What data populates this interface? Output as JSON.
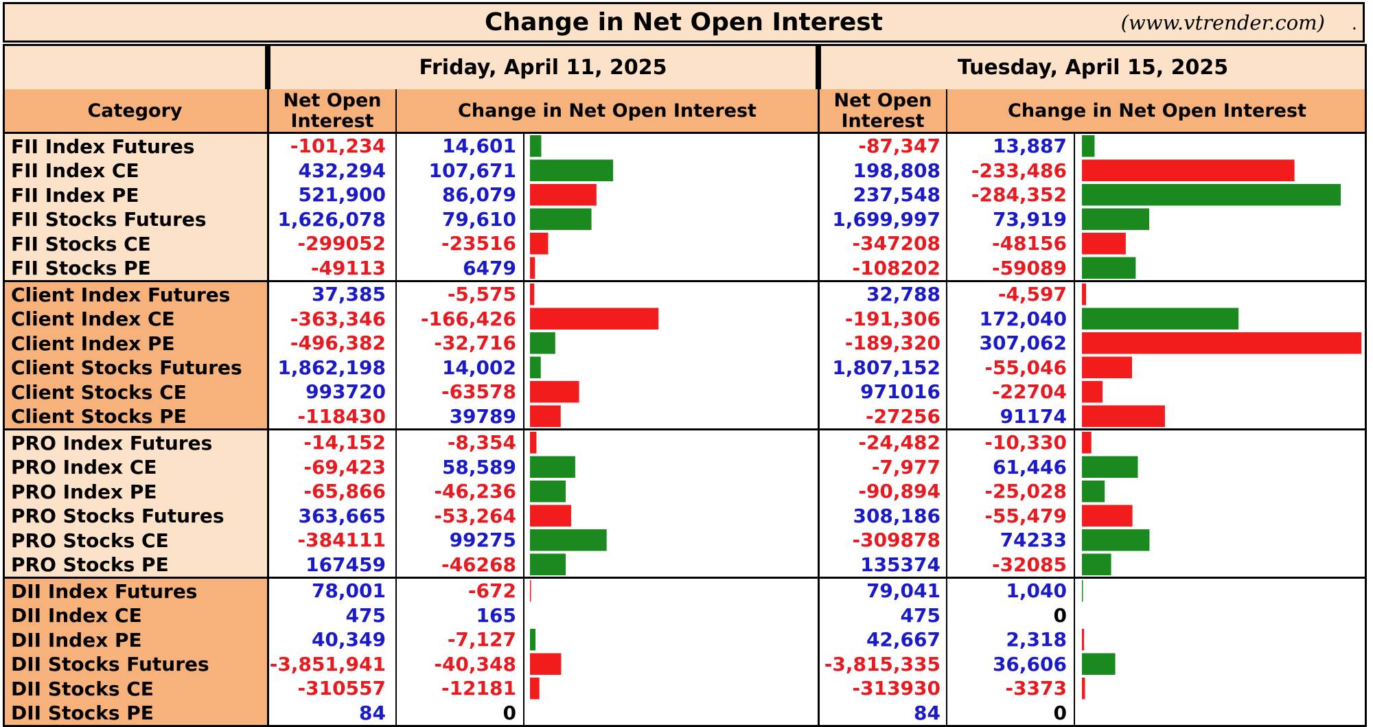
{
  "title": "Change in Net Open Interest",
  "site": "(www.vtrender.com)",
  "site_dot": ".",
  "headers": {
    "category": "Category",
    "net_oi_line1": "Net Open",
    "net_oi_line2": "Interest",
    "change": "Change in Net Open Interest"
  },
  "colors": {
    "positive_text": "#1a1ac8",
    "negative_text": "#e8191f",
    "zero_text": "#000000",
    "bar_green": "#1a8a1f",
    "bar_red": "#f21c1c",
    "header_light": "#fbe2c8",
    "header_dark": "#f6b27a"
  },
  "chart_data": {
    "type": "table",
    "title": "Change in Net Open Interest",
    "dates": [
      "Friday, April 11, 2025",
      "Tuesday, April 15, 2025"
    ],
    "categories": [
      "FII Index Futures",
      "FII Index CE",
      "FII Index PE",
      "FII Stocks Futures",
      "FII Stocks CE",
      "FII Stocks PE",
      "Client Index Futures",
      "Client Index CE",
      "Client Index PE",
      "Client Stocks Futures",
      "Client Stocks CE",
      "Client Stocks PE",
      "PRO Index Futures",
      "PRO Index CE",
      "PRO Index PE",
      "PRO Stocks Futures",
      "PRO Stocks CE",
      "PRO Stocks PE",
      "DII Index Futures",
      "DII Index CE",
      "DII Index PE",
      "DII Stocks Futures",
      "DII Stocks CE",
      "DII Stocks PE"
    ],
    "groups": [
      "FII",
      "Client",
      "PRO",
      "DII"
    ],
    "days": [
      {
        "date": "Friday, April 11, 2025",
        "net_oi": [
          "-101,234",
          "432,294",
          "521,900",
          "1,626,078",
          "-299052",
          "-49113",
          "37,385",
          "-363,346",
          "-496,382",
          "1,862,198",
          "993720",
          "-118430",
          "-14,152",
          "-69,423",
          "-65,866",
          "363,665",
          "-384111",
          "167459",
          "78,001",
          "475",
          "40,349",
          "-3,851,941",
          "-310557",
          "84"
        ],
        "change": [
          "14,601",
          "107,671",
          "86,079",
          "79,610",
          "-23516",
          "6479",
          "-5,575",
          "-166,426",
          "-32,716",
          "14,002",
          "-63578",
          "39789",
          "-8,354",
          "58,589",
          "-46,236",
          "-53,264",
          "99275",
          "-46268",
          "-672",
          "165",
          "-7,127",
          "-40,348",
          "-12181",
          "0"
        ],
        "change_values": [
          14601,
          107671,
          86079,
          79610,
          -23516,
          6479,
          -5575,
          -166426,
          -32716,
          14002,
          -63578,
          39789,
          -8354,
          58589,
          -46236,
          -53264,
          99275,
          -46268,
          -672,
          165,
          -7127,
          -40348,
          -12181,
          0
        ],
        "bar_color": [
          "green",
          "green",
          "red",
          "green",
          "red",
          "red",
          "red",
          "red",
          "green",
          "green",
          "red",
          "red",
          "red",
          "green",
          "green",
          "red",
          "green",
          "green",
          "red",
          "green",
          "green",
          "red",
          "red",
          "green"
        ]
      },
      {
        "date": "Tuesday, April 15, 2025",
        "net_oi": [
          "-87,347",
          "198,808",
          "237,548",
          "1,699,997",
          "-347208",
          "-108202",
          "32,788",
          "-191,306",
          "-189,320",
          "1,807,152",
          "971016",
          "-27256",
          "-24,482",
          "-7,977",
          "-90,894",
          "308,186",
          "-309878",
          "135374",
          "79,041",
          "475",
          "42,667",
          "-3,815,335",
          "-313930",
          "84"
        ],
        "change": [
          "13,887",
          "-233,486",
          "-284,352",
          "73,919",
          "-48156",
          "-59089",
          "-4,597",
          "172,040",
          "307,062",
          "-55,046",
          "-22704",
          "91174",
          "-10,330",
          "61,446",
          "-25,028",
          "-55,479",
          "74233",
          "-32085",
          "1,040",
          "0",
          "2,318",
          "36,606",
          "-3373",
          "0"
        ],
        "change_values": [
          13887,
          -233486,
          -284352,
          73919,
          -48156,
          -59089,
          -4597,
          172040,
          307062,
          -55046,
          -22704,
          91174,
          -10330,
          61446,
          -25028,
          -55479,
          74233,
          -32085,
          1040,
          0,
          2318,
          36606,
          -3373,
          0
        ],
        "bar_color": [
          "green",
          "red",
          "green",
          "green",
          "red",
          "green",
          "red",
          "green",
          "red",
          "red",
          "red",
          "red",
          "red",
          "green",
          "green",
          "red",
          "green",
          "green",
          "green",
          "green",
          "red",
          "green",
          "red",
          "green"
        ]
      }
    ]
  }
}
